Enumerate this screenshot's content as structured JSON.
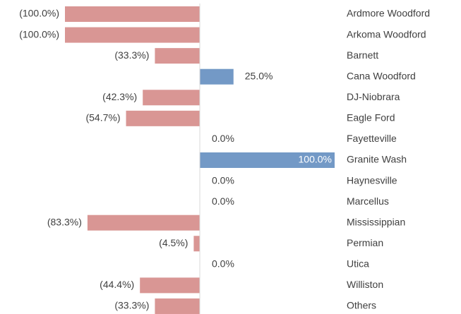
{
  "chart_data": {
    "type": "bar",
    "orientation": "horizontal",
    "categories": [
      "Ardmore Woodford",
      "Arkoma Woodford",
      "Barnett",
      "Cana Woodford",
      "DJ-Niobrara",
      "Eagle Ford",
      "Fayetteville",
      "Granite Wash",
      "Haynesville",
      "Marcellus",
      "Mississippian",
      "Permian",
      "Utica",
      "Williston",
      "Others"
    ],
    "values": [
      -100,
      -100,
      -33.3,
      25,
      -42.3,
      -54.7,
      0,
      100,
      0,
      0,
      -83.3,
      -4.5,
      0,
      -44.4,
      -33.3
    ],
    "value_labels": [
      "(100.0%)",
      "(100.0%)",
      "(33.3%)",
      "25.0%",
      "(42.3%)",
      "(54.7%)",
      "0.0%",
      "100.0%",
      "0.0%",
      "0.0%",
      "(83.3%)",
      "(4.5%)",
      "0.0%",
      "(44.4%)",
      "(33.3%)"
    ],
    "colors": {
      "positive": "#7399c6",
      "negative": "#d99694"
    },
    "xlim": [
      -100,
      100
    ]
  }
}
